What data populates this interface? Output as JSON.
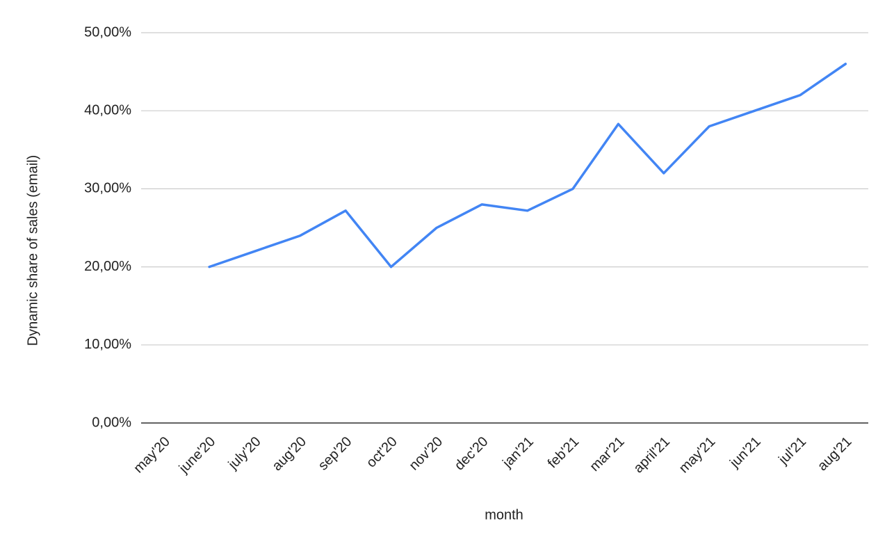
{
  "chart_data": {
    "type": "line",
    "x_label": "month",
    "y_label": "Dynamic share of sales (email)",
    "categories": [
      "may'20",
      "june'20",
      "july'20",
      "aug'20",
      "sep'20",
      "oct'20",
      "nov'20",
      "dec'20",
      "jan'21",
      "feb'21",
      "mar'21",
      "april'21",
      "may'21",
      "jun'21",
      "jul'21",
      "aug'21"
    ],
    "series": [
      {
        "name": "Dynamic share of sales (email)",
        "color": "#4285f4",
        "values": [
          null,
          20,
          22,
          24,
          27.2,
          20,
          25,
          28,
          27.2,
          30,
          38.3,
          32,
          38,
          40,
          42,
          46
        ]
      }
    ],
    "ylim": [
      0,
      50
    ],
    "yticks": [
      {
        "value": 0,
        "label": "0,00%"
      },
      {
        "value": 10,
        "label": "10,00%"
      },
      {
        "value": 20,
        "label": "20,00%"
      },
      {
        "value": 30,
        "label": "30,00%"
      },
      {
        "value": 40,
        "label": "40,00%"
      },
      {
        "value": 50,
        "label": "50,00%"
      }
    ],
    "grid": true
  }
}
